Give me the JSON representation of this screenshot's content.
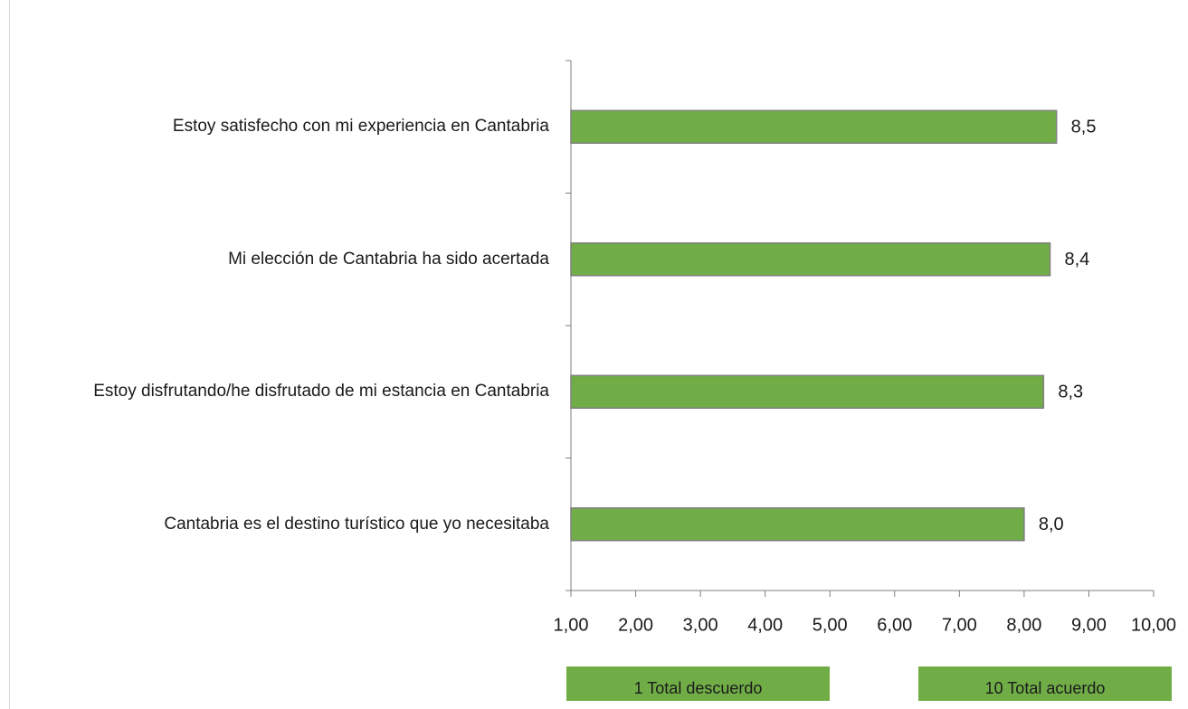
{
  "chart_data": {
    "type": "hbar",
    "categories": [
      "Estoy satisfecho con mi experiencia en Cantabria",
      "Mi elección de Cantabria ha sido acertada",
      "Estoy disfrutando/he disfrutado de mi estancia en Cantabria",
      "Cantabria es el destino turístico que yo necesitaba"
    ],
    "values": [
      8.5,
      8.4,
      8.3,
      8.0
    ],
    "value_labels": [
      "8,5",
      "8,4",
      "8,3",
      "8,0"
    ],
    "color": "#70ad47",
    "xlim": [
      1,
      10
    ],
    "xticks": [
      {
        "value": 1,
        "label": "1,00"
      },
      {
        "value": 2,
        "label": "2,00"
      },
      {
        "value": 3,
        "label": "3,00"
      },
      {
        "value": 4,
        "label": "4,00"
      },
      {
        "value": 5,
        "label": "5,00"
      },
      {
        "value": 6,
        "label": "6,00"
      },
      {
        "value": 7,
        "label": "7,00"
      },
      {
        "value": 8,
        "label": "8,00"
      },
      {
        "value": 9,
        "label": "9,00"
      },
      {
        "value": 10,
        "label": "10,00"
      }
    ],
    "annotations": [
      "1 Total descuerdo",
      "10 Total acuerdo"
    ]
  }
}
